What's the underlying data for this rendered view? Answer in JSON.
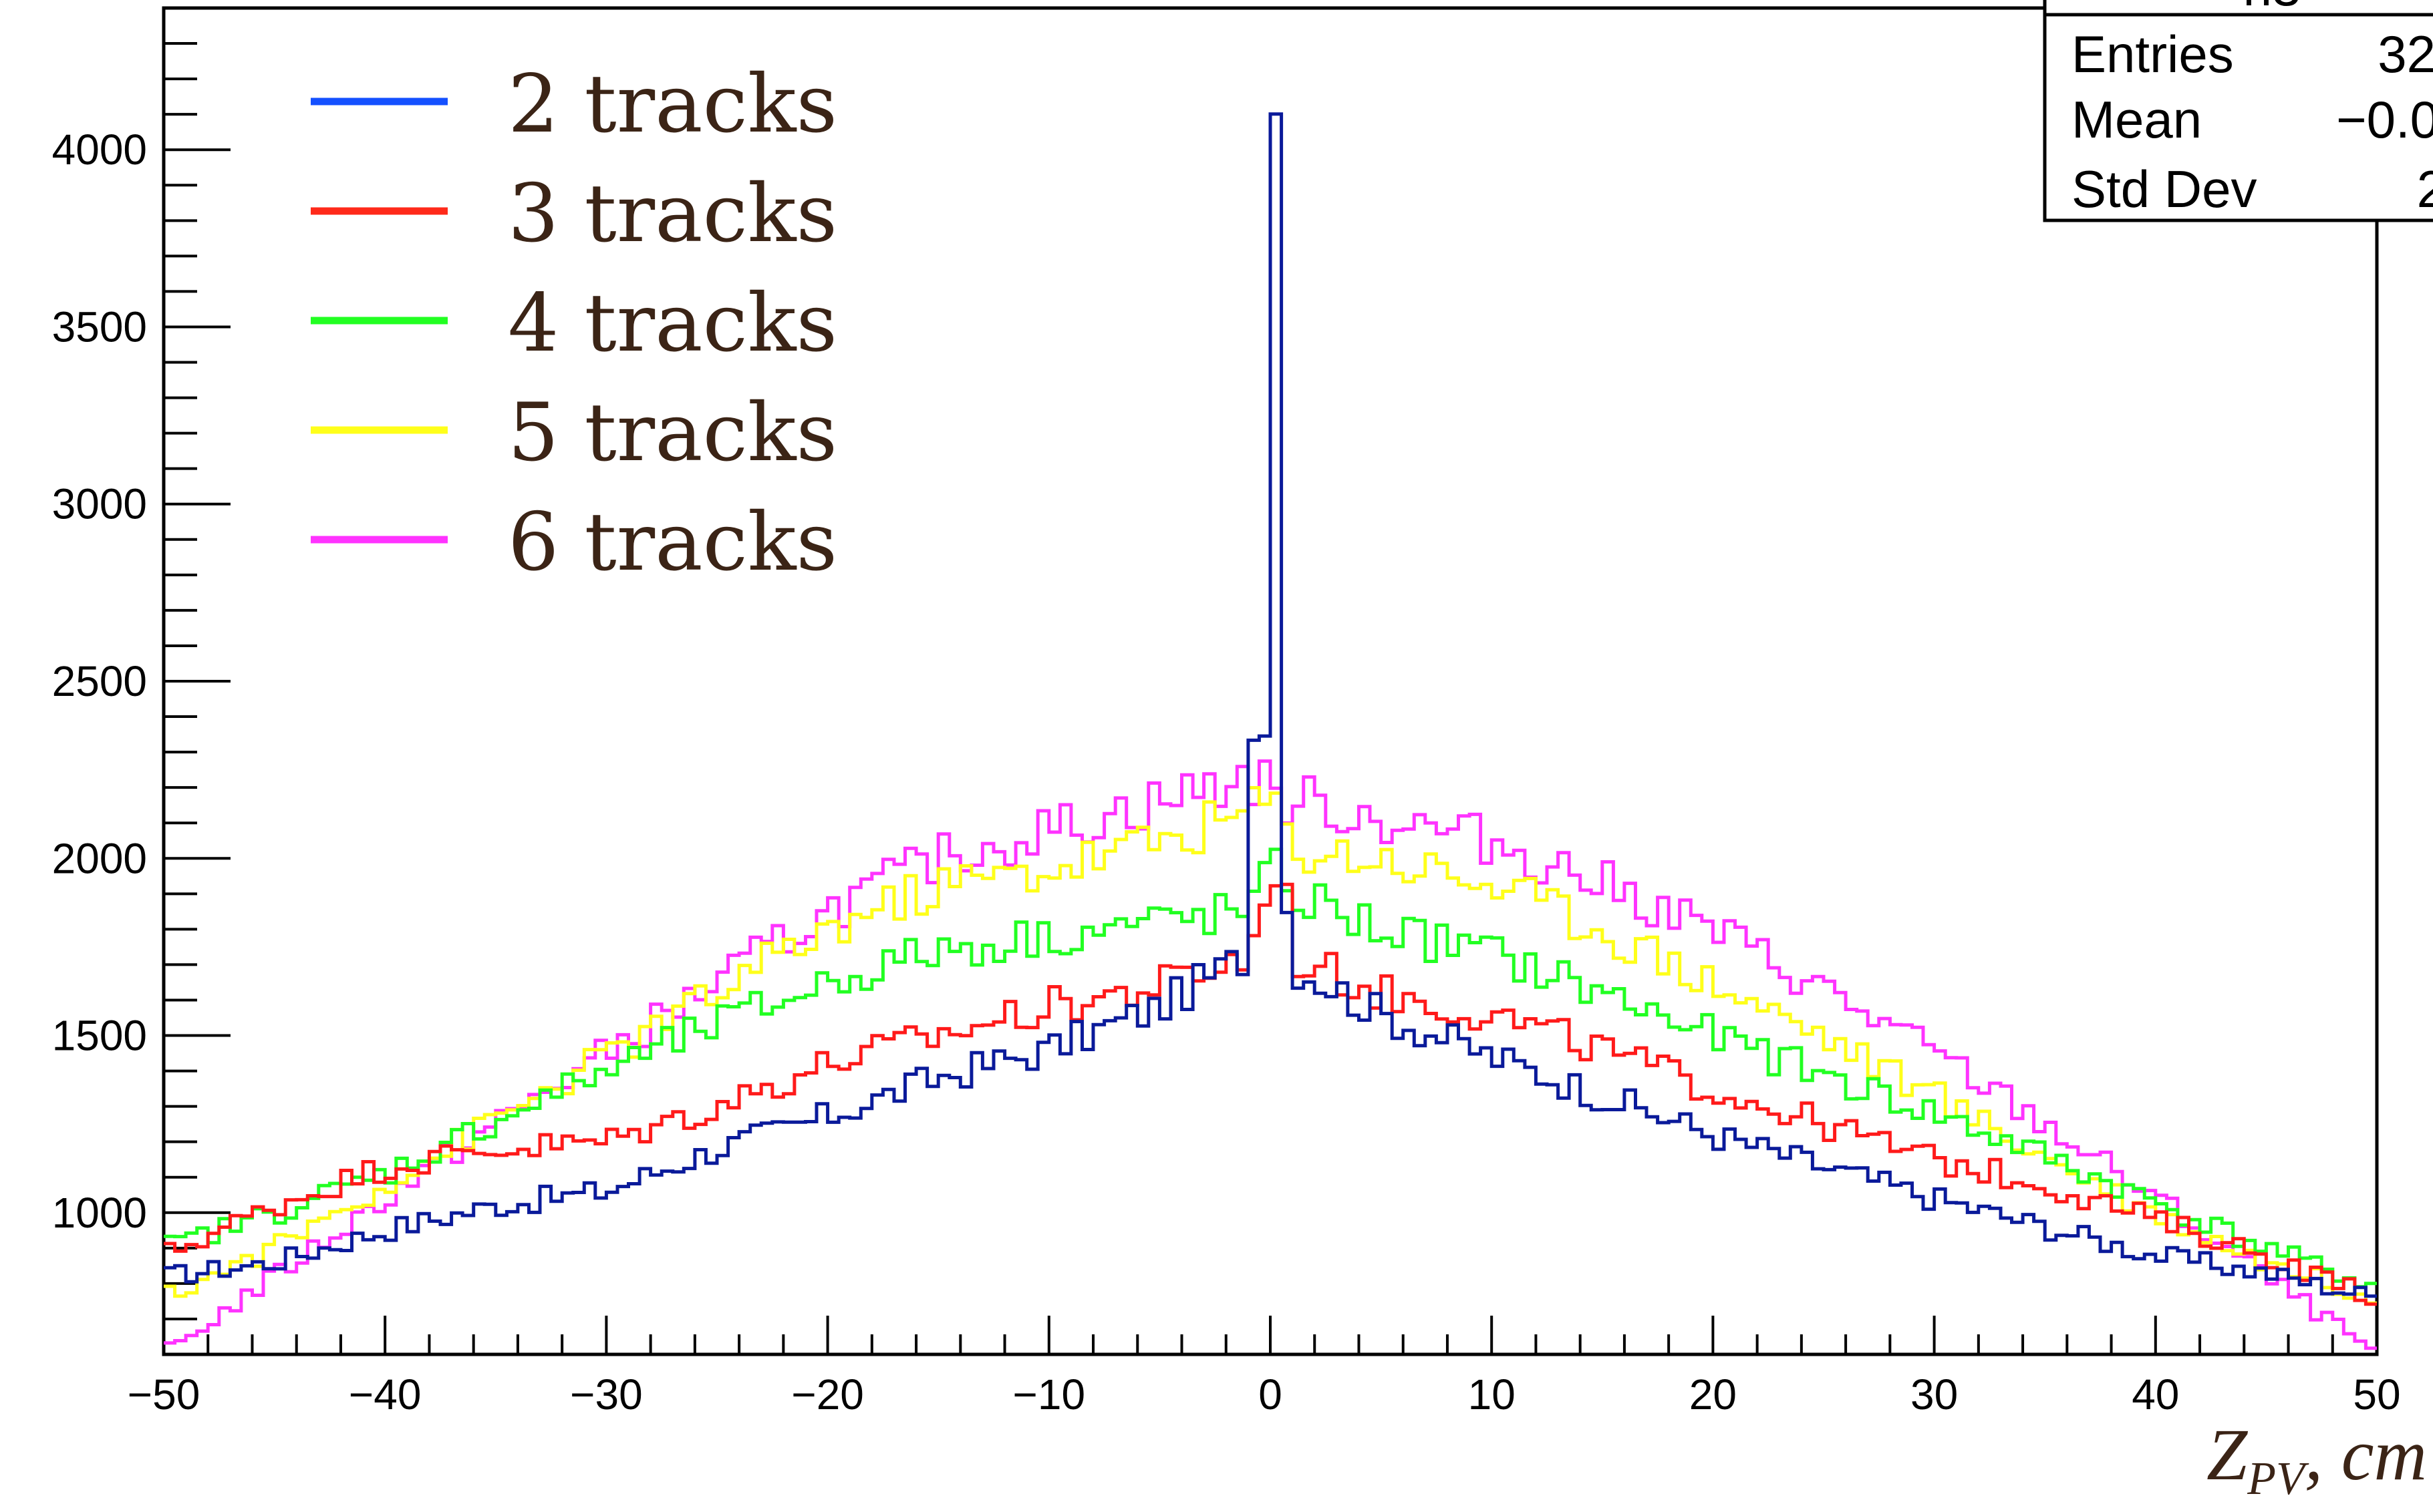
{
  "chart_data": {
    "type": "line",
    "title": "",
    "xlabel": "Z",
    "xlabel_subscript": "PV",
    "xlabel_suffix": ", cm",
    "ylabel": "",
    "xlim": [
      -50,
      50
    ],
    "ylim": [
      600,
      4400
    ],
    "x_ticks": [
      -50,
      -40,
      -30,
      -20,
      -10,
      0,
      10,
      20,
      30,
      40,
      50
    ],
    "x_tick_labels": [
      "−50",
      "−40",
      "−30",
      "−20",
      "−10",
      "0",
      "10",
      "20",
      "30",
      "40",
      "50"
    ],
    "y_ticks": [
      1000,
      1500,
      2000,
      2500,
      3000,
      3500,
      4000
    ],
    "y_tick_labels": [
      "1000",
      "1500",
      "2000",
      "2500",
      "3000",
      "3500",
      "4000"
    ],
    "grid": false,
    "legend_position": "top-left",
    "stats_box": {
      "partial_title": "h3",
      "rows": [
        {
          "label": "Entries",
          "value": "32"
        },
        {
          "label": "Mean",
          "value": "−0.0"
        },
        {
          "label": "Std Dev",
          "value": "2"
        }
      ]
    },
    "x": [
      -50,
      -45,
      -40,
      -35,
      -30,
      -25,
      -20,
      -15,
      -10,
      -5,
      -1,
      0,
      0.5,
      1,
      5,
      10,
      15,
      20,
      25,
      30,
      35,
      40,
      45,
      50
    ],
    "series": [
      {
        "name": "2 tracks",
        "color": "#0a1a9a",
        "legend_color": "#1450ff",
        "values": [
          820,
          860,
          950,
          1020,
          1060,
          1180,
          1270,
          1380,
          1460,
          1580,
          1730,
          4180,
          2010,
          1700,
          1560,
          1440,
          1330,
          1220,
          1130,
          1040,
          960,
          880,
          830,
          760
        ]
      },
      {
        "name": "3 tracks",
        "color": "#ff1a1a",
        "legend_color": "#ff2a1a",
        "values": [
          880,
          1020,
          1130,
          1180,
          1200,
          1300,
          1420,
          1500,
          1580,
          1640,
          1720,
          1920,
          2040,
          1720,
          1620,
          1560,
          1460,
          1350,
          1250,
          1150,
          1080,
          980,
          880,
          760
        ]
      },
      {
        "name": "4 tracks",
        "color": "#22ff22",
        "legend_color": "#22ff22",
        "values": [
          900,
          1000,
          1110,
          1260,
          1400,
          1530,
          1650,
          1740,
          1780,
          1820,
          1850,
          1950,
          1980,
          1900,
          1800,
          1730,
          1620,
          1500,
          1390,
          1280,
          1160,
          1030,
          900,
          790
        ]
      },
      {
        "name": "5 tracks",
        "color": "#ffff1a",
        "legend_color": "#ffff1a",
        "values": [
          760,
          900,
          1080,
          1260,
          1440,
          1620,
          1800,
          1920,
          1970,
          2050,
          2130,
          2170,
          2110,
          2030,
          2000,
          1930,
          1800,
          1650,
          1500,
          1330,
          1160,
          1000,
          860,
          760
        ]
      },
      {
        "name": "6 tracks",
        "color": "#ff33ff",
        "legend_color": "#ff33ff",
        "values": [
          600,
          820,
          1040,
          1250,
          1450,
          1650,
          1850,
          2000,
          2080,
          2160,
          2230,
          2200,
          2150,
          2170,
          2110,
          2050,
          1930,
          1800,
          1630,
          1450,
          1250,
          1040,
          820,
          600
        ]
      }
    ]
  }
}
